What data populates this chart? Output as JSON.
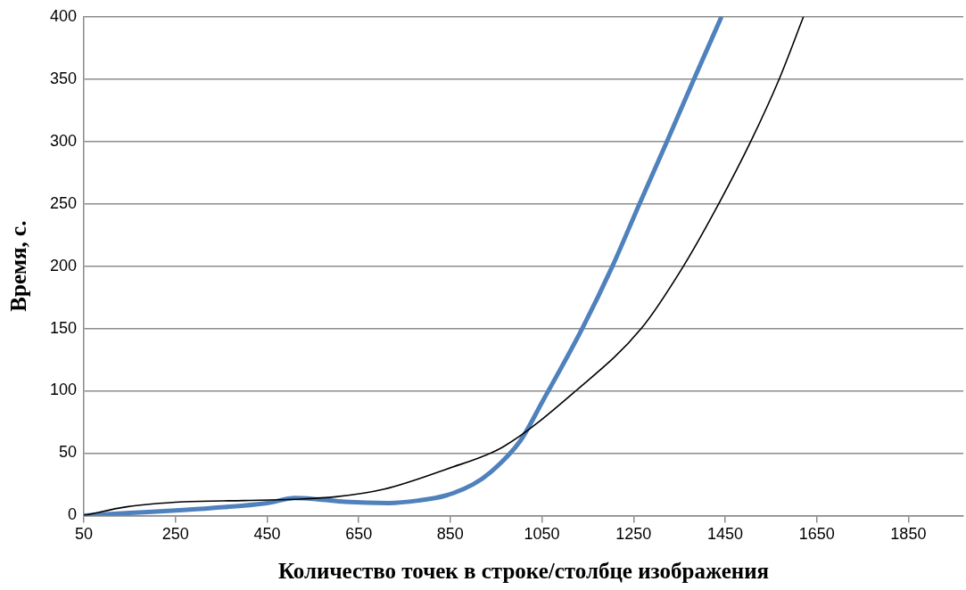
{
  "chart_data": {
    "type": "line",
    "xlabel": "Количество точек в строке/столбце изображения",
    "ylabel": "Время, с.",
    "xlim": [
      50,
      1970
    ],
    "xticks": [
      50,
      250,
      450,
      650,
      850,
      1050,
      1250,
      1450,
      1650,
      1850
    ],
    "ylim": [
      0,
      400
    ],
    "yticks": [
      0,
      50,
      100,
      150,
      200,
      250,
      300,
      350,
      400
    ],
    "grid": "y",
    "legend": false,
    "marker": "none",
    "line_style": "solid",
    "series": [
      {
        "color": "#4f81bd",
        "x": [
          50,
          150,
          250,
          330,
          450,
          511,
          560,
          620,
          716,
          780,
          840,
          900,
          939,
          1003,
          1052,
          1138,
          1204,
          1263,
          1323,
          1382,
          1442
        ],
        "values": [
          0,
          2,
          4,
          6,
          10,
          14,
          13,
          11,
          10,
          12,
          16,
          25,
          35,
          60,
          92,
          150,
          200,
          250,
          300,
          350,
          400
        ]
      },
      {
        "color": "#000000",
        "x": [
          50,
          144,
          269,
          400,
          511,
          600,
          704,
          840,
          965,
          1124,
          1267,
          1359,
          1436,
          1506,
          1568,
          1621
        ],
        "values": [
          0,
          7,
          11,
          12,
          13,
          15,
          21,
          37,
          55,
          100,
          150,
          200,
          250,
          300,
          350,
          400
        ]
      }
    ]
  }
}
